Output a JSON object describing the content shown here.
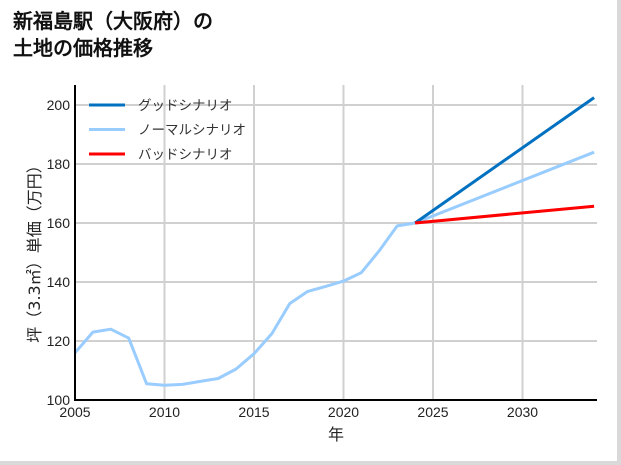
{
  "title": {
    "line1": "新福島駅（大阪府）の",
    "line2": "土地の価格推移"
  },
  "chart_data": {
    "type": "line",
    "title": "新福島駅（大阪府）の土地の価格推移",
    "xlabel": "年",
    "ylabel": "坪（3.3㎡）単価（万円）",
    "xlim": [
      2005,
      2034
    ],
    "ylim": [
      100,
      207
    ],
    "xticks": [
      2005,
      2010,
      2015,
      2020,
      2025,
      2030
    ],
    "yticks": [
      100,
      120,
      140,
      160,
      180,
      200
    ],
    "grid": true,
    "legend_position": "upper left",
    "series": [
      {
        "name": "グッドシナリオ",
        "color": "#0070c0",
        "x": [
          2024,
          2034
        ],
        "values": [
          160,
          202.5
        ]
      },
      {
        "name": "ノーマルシナリオ",
        "color": "#99ccff",
        "x": [
          2005,
          2006,
          2007,
          2008,
          2009,
          2010,
          2011,
          2012,
          2013,
          2014,
          2015,
          2016,
          2017,
          2018,
          2019,
          2020,
          2021,
          2022,
          2023,
          2024,
          2034
        ],
        "values": [
          116,
          123,
          124,
          121,
          105.5,
          105,
          105.3,
          106.3,
          107.3,
          110.5,
          115.7,
          122.5,
          132.7,
          136.8,
          138.5,
          140.3,
          143.2,
          150.6,
          159,
          160,
          184
        ]
      },
      {
        "name": "バッドシナリオ",
        "color": "#ff0000",
        "x": [
          2024,
          2034
        ],
        "values": [
          160,
          165.7
        ]
      }
    ]
  }
}
